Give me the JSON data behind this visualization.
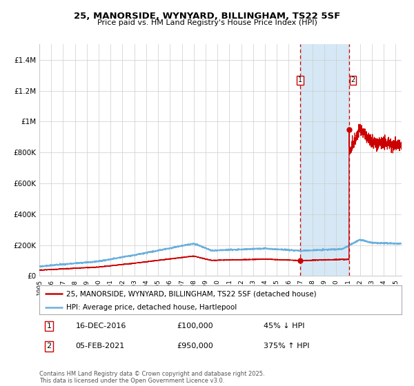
{
  "title": "25, MANORSIDE, WYNYARD, BILLINGHAM, TS22 5SF",
  "subtitle": "Price paid vs. HM Land Registry's House Price Index (HPI)",
  "ylim": [
    0,
    1500000
  ],
  "yticks": [
    0,
    200000,
    400000,
    600000,
    800000,
    1000000,
    1200000,
    1400000
  ],
  "ytick_labels": [
    "£0",
    "£200K",
    "£400K",
    "£600K",
    "£800K",
    "£1M",
    "£1.2M",
    "£1.4M"
  ],
  "hpi_color": "#6ab0de",
  "price_color": "#cc0000",
  "marker_color": "#cc0000",
  "dashed_line_color": "#cc0000",
  "shade_color": "#d6e8f5",
  "background_color": "#ffffff",
  "grid_color": "#cccccc",
  "sale1_date_num": 2016.96,
  "sale1_price": 100000,
  "sale2_date_num": 2021.09,
  "sale2_price": 950000,
  "legend_line1": "25, MANORSIDE, WYNYARD, BILLINGHAM, TS22 5SF (detached house)",
  "legend_line2": "HPI: Average price, detached house, Hartlepool",
  "note1_label": "1",
  "note1_date": "16-DEC-2016",
  "note1_price": "£100,000",
  "note1_change": "45% ↓ HPI",
  "note2_label": "2",
  "note2_date": "05-FEB-2021",
  "note2_price": "£950,000",
  "note2_change": "375% ↑ HPI",
  "footer": "Contains HM Land Registry data © Crown copyright and database right 2025.\nThis data is licensed under the Open Government Licence v3.0.",
  "xstart": 1995.0,
  "xend": 2025.5
}
